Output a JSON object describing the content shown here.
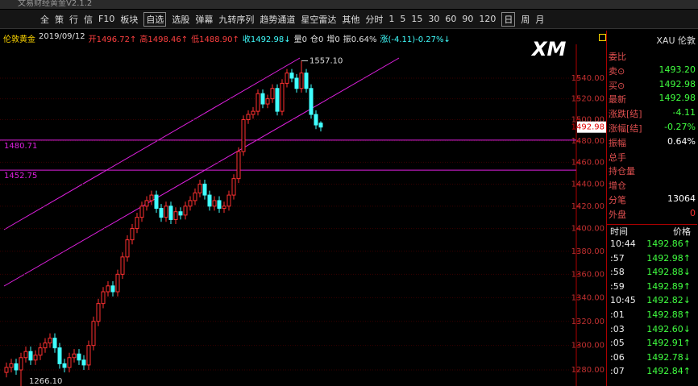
{
  "app": {
    "window_title": "文易财经黄金V2.1.2",
    "toolbar": [
      "全",
      "策",
      "行",
      "信",
      "F10",
      "板块",
      "自选",
      "选股",
      "弹幕",
      "九转序列",
      "趋势通道",
      "星空雷达",
      "其他",
      "分时",
      "1",
      "5",
      "15",
      "30",
      "60",
      "90",
      "120",
      "日",
      "周",
      "月"
    ]
  },
  "info": [
    {
      "text": "伦敦黄金",
      "color": "#ffd700"
    },
    {
      "text": "2019/09/12",
      "color": "#e0e0e0"
    },
    {
      "text": "开1496.72↑",
      "color": "#ff4040"
    },
    {
      "text": "高1498.46↑",
      "color": "#ff4040"
    },
    {
      "text": "低1488.90↑",
      "color": "#ff4040"
    },
    {
      "text": "收1492.98↓",
      "color": "#40ffff"
    },
    {
      "text": "量0",
      "color": "#e0e0e0"
    },
    {
      "text": "仓0",
      "color": "#e0e0e0"
    },
    {
      "text": "增0",
      "color": "#e0e0e0"
    },
    {
      "text": "振0.64%",
      "color": "#e0e0e0"
    },
    {
      "text": "涨(-4.11)-0.27%↓",
      "color": "#40ffff"
    }
  ],
  "chart_data": {
    "type": "candlestick",
    "logo": "XM",
    "log_scale": true,
    "grid": true,
    "up_color": "#ff3030",
    "down_color": "#40ffff",
    "ylim": [
      1267,
      1573.4
    ],
    "yticks": [
      {
        "value": 1280,
        "label": "1280.00"
      },
      {
        "value": 1300,
        "label": "1300.00"
      },
      {
        "value": 1320,
        "label": "1320.00"
      },
      {
        "value": 1340,
        "label": "1340.00"
      },
      {
        "value": 1360,
        "label": "1360.00"
      },
      {
        "value": 1380,
        "label": "1380.00"
      },
      {
        "value": 1400,
        "label": "1400.00"
      },
      {
        "value": 1420,
        "label": "1420.00"
      },
      {
        "value": 1440,
        "label": "1440.00"
      },
      {
        "value": 1460,
        "label": "1460.00"
      },
      {
        "value": 1480,
        "label": "1480.00"
      },
      {
        "value": 1500,
        "label": "1500.00"
      },
      {
        "value": 1520,
        "label": "1520.00"
      },
      {
        "value": 1540,
        "label": "1540.00"
      }
    ],
    "hlines": [
      1480.71,
      1452.75
    ],
    "last_price": 1492.98,
    "annotations": [
      {
        "text": "1557.10",
        "value": 1557.1,
        "index": 61
      },
      {
        "text": "1266.10",
        "value": 1266.1,
        "index": 3
      }
    ],
    "open": [
      1278,
      1282,
      1285,
      1280,
      1290,
      1295,
      1288,
      1292,
      1298,
      1302,
      1306,
      1298,
      1285,
      1282,
      1290,
      1293,
      1288,
      1284,
      1300,
      1320,
      1335,
      1345,
      1350,
      1345,
      1360,
      1375,
      1390,
      1400,
      1410,
      1420,
      1425,
      1430,
      1418,
      1410,
      1420,
      1408,
      1415,
      1412,
      1420,
      1425,
      1432,
      1440,
      1430,
      1420,
      1425,
      1418,
      1420,
      1430,
      1445,
      1470,
      1500,
      1505,
      1508,
      1525,
      1515,
      1520,
      1530,
      1508,
      1535,
      1545,
      1540,
      1530,
      1545,
      1530,
      1505,
      1496.72
    ],
    "high": [
      1286,
      1289,
      1289,
      1294,
      1299,
      1299,
      1296,
      1302,
      1306,
      1310,
      1310,
      1302,
      1289,
      1294,
      1297,
      1297,
      1292,
      1304,
      1324,
      1339,
      1349,
      1354,
      1354,
      1364,
      1379,
      1394,
      1404,
      1414,
      1424,
      1429,
      1434,
      1434,
      1422,
      1424,
      1424,
      1419,
      1419,
      1424,
      1429,
      1436,
      1444,
      1444,
      1434,
      1429,
      1429,
      1424,
      1434,
      1449,
      1474,
      1504,
      1509,
      1512,
      1529,
      1529,
      1524,
      1534,
      1534,
      1539,
      1549,
      1549,
      1544,
      1557.1,
      1549,
      1534,
      1509,
      1498.46
    ],
    "low": [
      1274,
      1278,
      1276,
      1266.1,
      1286,
      1284,
      1284,
      1288,
      1294,
      1298,
      1294,
      1281,
      1278,
      1278,
      1286,
      1284,
      1280,
      1280,
      1296,
      1316,
      1331,
      1341,
      1341,
      1341,
      1356,
      1371,
      1386,
      1396,
      1406,
      1416,
      1421,
      1414,
      1406,
      1406,
      1404,
      1404,
      1408,
      1408,
      1416,
      1421,
      1428,
      1426,
      1416,
      1416,
      1414,
      1414,
      1416,
      1426,
      1441,
      1466,
      1496,
      1501,
      1504,
      1511,
      1511,
      1516,
      1504,
      1504,
      1531,
      1536,
      1526,
      1526,
      1526,
      1501,
      1491,
      1488.9
    ],
    "close": [
      1282,
      1285,
      1280,
      1290,
      1295,
      1288,
      1292,
      1298,
      1302,
      1306,
      1298,
      1285,
      1282,
      1290,
      1293,
      1288,
      1284,
      1300,
      1320,
      1335,
      1345,
      1350,
      1345,
      1360,
      1375,
      1390,
      1400,
      1410,
      1420,
      1425,
      1430,
      1418,
      1410,
      1420,
      1408,
      1415,
      1412,
      1420,
      1425,
      1432,
      1440,
      1430,
      1420,
      1425,
      1418,
      1420,
      1430,
      1445,
      1470,
      1500,
      1505,
      1508,
      1525,
      1515,
      1520,
      1530,
      1508,
      1535,
      1545,
      1540,
      1530,
      1545,
      1530,
      1505,
      1495,
      1492.98
    ]
  },
  "quote": {
    "header": "XAU 伦敦",
    "rows": [
      {
        "label": "委比",
        "value": null,
        "color": "#e0e0e0"
      },
      {
        "label": "卖⊙",
        "value": "1493.20",
        "color": "#40ff40"
      },
      {
        "label": "买⊙",
        "value": "1492.98",
        "color": "#40ff40"
      },
      {
        "label": "最新",
        "value": "1492.98",
        "color": "#40ff40"
      },
      {
        "label": "涨跌[结]",
        "value": "-4.11",
        "color": "#40ff40"
      },
      {
        "label": "涨幅[结]",
        "value": "-0.27%",
        "color": "#40ff40"
      },
      {
        "label": "振幅",
        "value": "0.64%",
        "color": "#ffffff"
      },
      {
        "label": "总手",
        "value": null,
        "color": "#e0e0e0"
      },
      {
        "label": "持仓量",
        "value": null,
        "color": "#e0e0e0"
      },
      {
        "label": "增仓",
        "value": null,
        "color": "#e0e0e0"
      },
      {
        "label": "分笔",
        "value": "13064",
        "color": "#ffffff"
      },
      {
        "label": "外盘",
        "value": "0",
        "color": "#ff3030"
      }
    ]
  },
  "trades": {
    "columns": [
      "时间",
      "价格"
    ],
    "rows": [
      [
        "10:44",
        "1492.86↑"
      ],
      [
        ":57",
        "1492.98↑"
      ],
      [
        ":58",
        "1492.88↓"
      ],
      [
        ":59",
        "1492.89↑"
      ],
      [
        "10:45",
        "1492.82↓"
      ],
      [
        ":01",
        "1492.88↑"
      ],
      [
        ":03",
        "1492.60↓"
      ],
      [
        ":05",
        "1492.91↑"
      ],
      [
        ":06",
        "1492.78↓"
      ],
      [
        ":07",
        "1492.84↑"
      ]
    ]
  }
}
